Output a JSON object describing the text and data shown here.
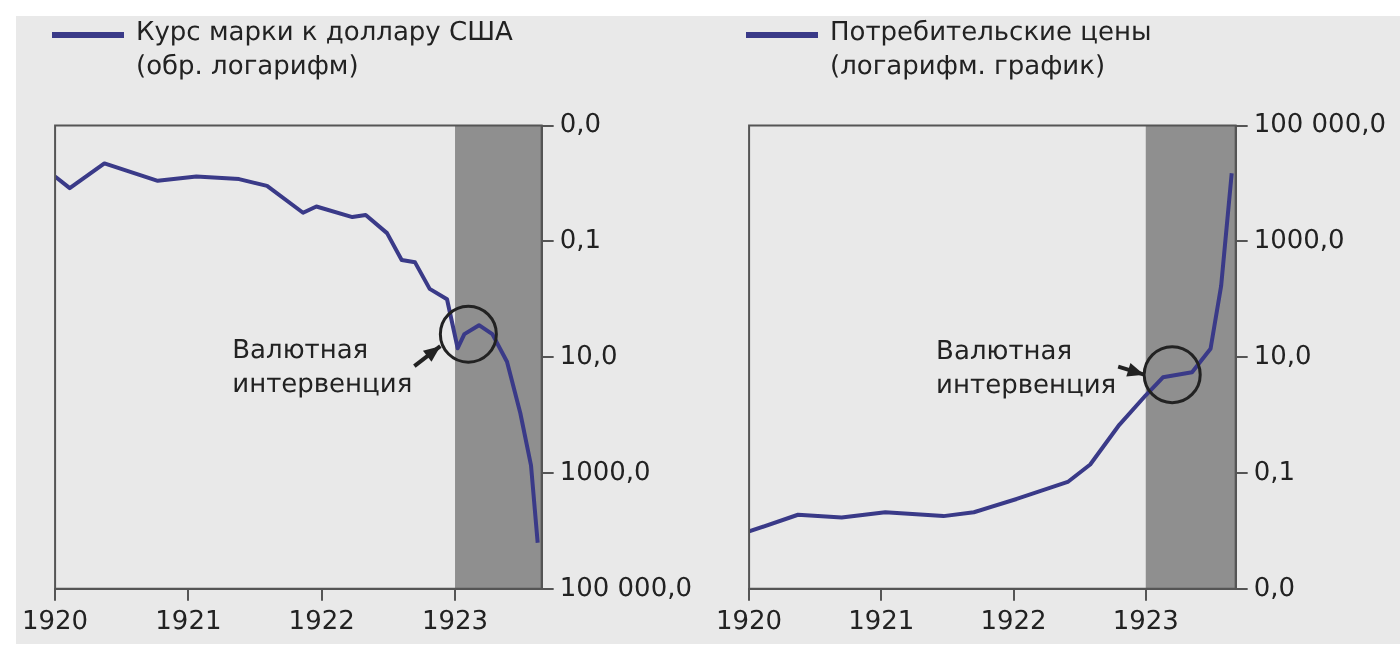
{
  "chart_data": [
    {
      "type": "line",
      "x": [
        1920.0,
        1920.11,
        1920.37,
        1920.77,
        1921.06,
        1921.38,
        1921.59,
        1921.86,
        1921.96,
        1922.23,
        1922.33,
        1922.49,
        1922.6,
        1922.7,
        1922.81,
        1922.94,
        1923.02,
        1923.07,
        1923.18,
        1923.28,
        1923.39,
        1923.49,
        1923.57,
        1923.62
      ],
      "series": [
        {
          "name": "Курс марки к доллару США (обр. логарифм)",
          "color": "#3a3a88",
          "values": [
            0.0076,
            0.012,
            0.0045,
            0.009,
            0.0076,
            0.0084,
            0.011,
            0.032,
            0.025,
            0.038,
            0.035,
            0.072,
            0.21,
            0.23,
            0.66,
            1.0,
            7,
            4,
            2.8,
            4,
            12,
            93,
            740,
            16000
          ]
        }
      ],
      "xlim": [
        1920,
        1923.65
      ],
      "xticks": [
        1920,
        1921,
        1922,
        1923
      ],
      "ylim": [
        100000,
        0.001
      ],
      "yticks": [
        {
          "value": 0.001,
          "label": "0,0"
        },
        {
          "value": 0.1,
          "label": "0,1"
        },
        {
          "value": 10,
          "label": "10,0"
        },
        {
          "value": 1000,
          "label": "1000,0"
        },
        {
          "value": 100000,
          "label": "100 000,0"
        }
      ],
      "log": "y",
      "grid": false,
      "legend": "top left",
      "marker": "none",
      "bands": [
        {
          "axis": "x",
          "from": 1923,
          "to": 1923.65,
          "color": "#8f8f8f"
        }
      ],
      "annotations": [
        {
          "text": "Валютная интервенция",
          "x": 1923.1,
          "y": 4
        }
      ]
    },
    {
      "type": "line",
      "x": [
        1920.0,
        1920.37,
        1920.7,
        1921.03,
        1921.47,
        1921.7,
        1922.03,
        1922.41,
        1922.58,
        1922.8,
        1923.0,
        1923.13,
        1923.35,
        1923.49,
        1923.57,
        1923.65
      ],
      "series": [
        {
          "name": "Потребительские цены (логарифм. график)",
          "color": "#3a3a88",
          "values": [
            0.0098,
            0.019,
            0.017,
            0.021,
            0.018,
            0.021,
            0.036,
            0.07,
            0.14,
            0.68,
            2.2,
            4.5,
            5.5,
            14,
            170,
            15000
          ]
        }
      ],
      "xlim": [
        1920,
        1923.68
      ],
      "xticks": [
        1920,
        1921,
        1922,
        1923
      ],
      "ylim": [
        0.001,
        100000
      ],
      "yticks": [
        {
          "value": 0.001,
          "label": "0,0"
        },
        {
          "value": 0.1,
          "label": "0,1"
        },
        {
          "value": 10,
          "label": "10,0"
        },
        {
          "value": 1000,
          "label": "1000,0"
        },
        {
          "value": 100000,
          "label": "100 000,0"
        }
      ],
      "log": "y",
      "grid": false,
      "legend": "top left",
      "marker": "none",
      "bands": [
        {
          "axis": "x",
          "from": 1923,
          "to": 1923.68,
          "color": "#8f8f8f"
        }
      ],
      "annotations": [
        {
          "text": "Валютная интервенция",
          "x": 1923.2,
          "y": 5
        }
      ]
    }
  ]
}
